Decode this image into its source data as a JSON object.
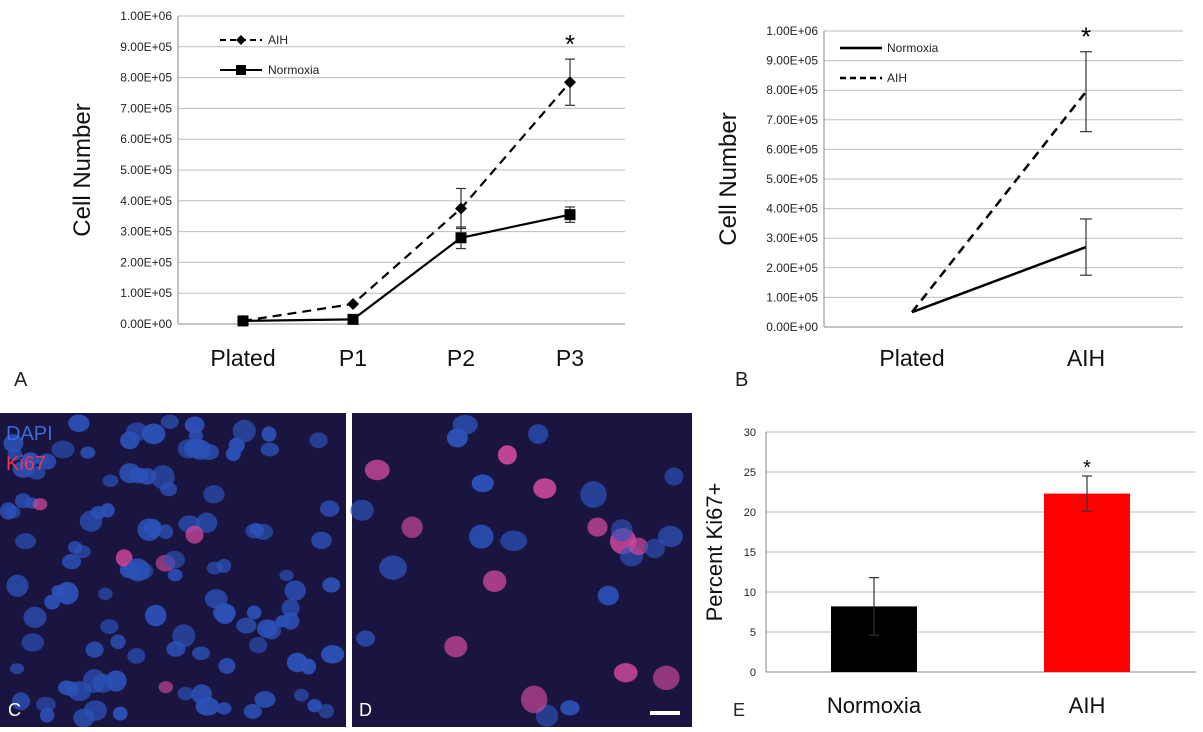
{
  "colors": {
    "bg": "#ffffff",
    "grid": "#bdbdbd",
    "axis": "#8a8a8a",
    "line": "#000000",
    "bar_normoxia": "#000000",
    "bar_aih": "#ff0000",
    "dapi": "#3a6cd8",
    "ki67": "#e8365a",
    "micro_bg": "#1a1440"
  },
  "panels": {
    "a": "A",
    "b": "B",
    "c": "C",
    "d": "D",
    "e": "E"
  },
  "micro": {
    "c_labels": [
      "DAPI",
      "Ki67"
    ]
  },
  "chart_data": [
    {
      "id": "A",
      "type": "line",
      "ylabel": "Cell Number",
      "ylim": [
        0,
        1000000
      ],
      "yticks": [
        "0.00E+00",
        "1.00E+05",
        "2.00E+05",
        "3.00E+05",
        "4.00E+05",
        "5.00E+05",
        "6.00E+05",
        "7.00E+05",
        "8.00E+05",
        "9.00E+05",
        "1.00E+06"
      ],
      "categories": [
        "Plated",
        "P1",
        "P2",
        "P3"
      ],
      "grid": true,
      "legend_position": "top-left",
      "series": [
        {
          "name": "AIH",
          "style": "dashed",
          "marker": "diamond",
          "values": [
            10000,
            65000,
            375000,
            785000
          ],
          "errors": [
            0,
            0,
            65000,
            75000
          ]
        },
        {
          "name": "Normoxia",
          "style": "solid",
          "marker": "square",
          "values": [
            10000,
            15000,
            280000,
            355000
          ],
          "errors": [
            0,
            0,
            35000,
            25000
          ]
        }
      ],
      "annotations": [
        {
          "category": "P3",
          "text": "*"
        }
      ]
    },
    {
      "id": "B",
      "type": "line",
      "ylabel": "Cell Number",
      "ylim": [
        0,
        1000000
      ],
      "yticks": [
        "0.00E+00",
        "1.00E+05",
        "2.00E+05",
        "3.00E+05",
        "4.00E+05",
        "5.00E+05",
        "6.00E+05",
        "7.00E+05",
        "8.00E+05",
        "9.00E+05",
        "1.00E+06"
      ],
      "categories": [
        "Plated",
        "AIH"
      ],
      "grid": true,
      "legend_position": "top-left",
      "series": [
        {
          "name": "Normoxia",
          "style": "solid",
          "values": [
            50000,
            270000
          ],
          "errors": [
            0,
            95000
          ]
        },
        {
          "name": "AIH",
          "style": "dashed",
          "values": [
            50000,
            795000
          ],
          "errors": [
            0,
            135000
          ]
        }
      ],
      "annotations": [
        {
          "category": "AIH",
          "text": "*"
        }
      ]
    },
    {
      "id": "E",
      "type": "bar",
      "ylabel": "Percent Ki67+",
      "ylim": [
        0,
        30
      ],
      "yticks": [
        "0",
        "5",
        "10",
        "15",
        "20",
        "25",
        "30"
      ],
      "categories": [
        "Normoxia",
        "AIH"
      ],
      "values": [
        8.2,
        22.3
      ],
      "errors": [
        3.6,
        2.2
      ],
      "grid": true,
      "annotations": [
        {
          "category": "AIH",
          "text": "*"
        }
      ]
    }
  ]
}
